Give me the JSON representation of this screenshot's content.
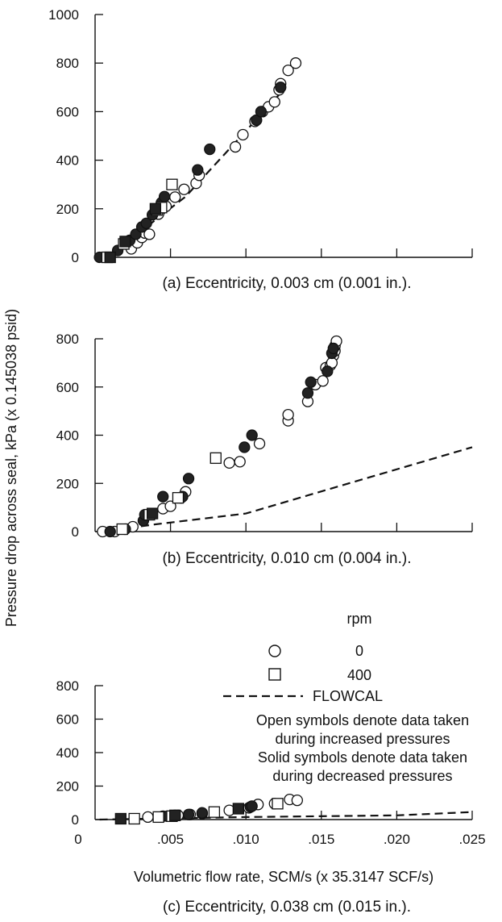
{
  "y_axis_label": "Pressure drop across seal, kPa (x 0.145038 psid)",
  "x_axis_label": "Volumetric flow rate, SCM/s (x 35.3147 SCF/s)",
  "legend": {
    "title": "rpm",
    "open_circle_label": "0",
    "open_square_label": "400",
    "line_label": "FLOWCAL",
    "note_lines": [
      "Open symbols denote data taken",
      "during increased pressures",
      "Solid symbols denote data taken",
      "during decreased pressures"
    ]
  },
  "chart_data": [
    {
      "type": "scatter",
      "caption": "(a) Eccentricity, 0.003 cm (0.001 in.).",
      "xlim": [
        0,
        0.025
      ],
      "ylim": [
        0,
        1000
      ],
      "x_ticks": [
        0,
        0.005,
        0.01,
        0.015,
        0.02,
        0.025
      ],
      "x_tick_labels": [],
      "y_ticks": [
        0,
        200,
        400,
        600,
        800,
        1000
      ],
      "y_tick_labels": [
        "0",
        "200",
        "400",
        "600",
        "800",
        "1000"
      ],
      "series": [
        {
          "name": "0",
          "marker": "circle",
          "fill": "open",
          "points": [
            [
              0.0024,
              35
            ],
            [
              0.0028,
              60
            ],
            [
              0.0031,
              82
            ],
            [
              0.0033,
              100
            ],
            [
              0.0036,
              95
            ],
            [
              0.0042,
              178
            ],
            [
              0.0047,
              210
            ],
            [
              0.0053,
              248
            ],
            [
              0.0059,
              280
            ],
            [
              0.0067,
              305
            ],
            [
              0.0069,
              338
            ],
            [
              0.0093,
              455
            ],
            [
              0.0098,
              505
            ],
            [
              0.0106,
              560
            ],
            [
              0.0111,
              600
            ],
            [
              0.0115,
              620
            ],
            [
              0.0119,
              640
            ],
            [
              0.0122,
              690
            ],
            [
              0.0123,
              715
            ],
            [
              0.0128,
              770
            ],
            [
              0.0133,
              800
            ]
          ]
        },
        {
          "name": "0",
          "marker": "circle",
          "fill": "solid",
          "points": [
            [
              0.0003,
              0
            ],
            [
              0.0015,
              28
            ],
            [
              0.0023,
              70
            ],
            [
              0.0027,
              95
            ],
            [
              0.0031,
              125
            ],
            [
              0.0034,
              140
            ],
            [
              0.0038,
              175
            ],
            [
              0.0044,
              225
            ],
            [
              0.0046,
              250
            ],
            [
              0.0068,
              360
            ],
            [
              0.0076,
              445
            ],
            [
              0.0107,
              565
            ],
            [
              0.011,
              600
            ],
            [
              0.0123,
              700
            ]
          ]
        },
        {
          "name": "400",
          "marker": "square",
          "fill": "open",
          "points": [
            [
              0.0008,
              0
            ],
            [
              0.0019,
              55
            ],
            [
              0.0041,
              195
            ],
            [
              0.0044,
              205
            ],
            [
              0.0051,
              300
            ]
          ]
        },
        {
          "name": "400",
          "marker": "square",
          "fill": "solid",
          "points": [
            [
              0.001,
              0
            ],
            [
              0.002,
              65
            ],
            [
              0.004,
              200
            ]
          ]
        },
        {
          "name": "FLOWCAL",
          "marker": "line",
          "points": [
            [
              0.0008,
              0
            ],
            [
              0.006,
              250
            ],
            [
              0.0125,
              690
            ]
          ]
        }
      ]
    },
    {
      "type": "scatter",
      "caption": "(b) Eccentricity, 0.010 cm (0.004 in.).",
      "xlim": [
        0,
        0.025
      ],
      "ylim": [
        0,
        800
      ],
      "x_ticks": [
        0,
        0.005,
        0.01,
        0.015,
        0.02,
        0.025
      ],
      "x_tick_labels": [],
      "y_ticks": [
        0,
        200,
        400,
        600,
        800
      ],
      "y_tick_labels": [
        "0",
        "200",
        "400",
        "600",
        "800"
      ],
      "series": [
        {
          "name": "0",
          "marker": "circle",
          "fill": "open",
          "points": [
            [
              0.0005,
              0
            ],
            [
              0.0013,
              0
            ],
            [
              0.0025,
              20
            ],
            [
              0.0045,
              95
            ],
            [
              0.005,
              105
            ],
            [
              0.0057,
              140
            ],
            [
              0.006,
              165
            ],
            [
              0.0089,
              285
            ],
            [
              0.0096,
              290
            ],
            [
              0.0109,
              365
            ],
            [
              0.0128,
              460
            ],
            [
              0.0128,
              485
            ],
            [
              0.0141,
              540
            ],
            [
              0.0146,
              610
            ],
            [
              0.0151,
              625
            ],
            [
              0.0153,
              680
            ],
            [
              0.0156,
              690
            ],
            [
              0.0158,
              730
            ],
            [
              0.0159,
              750
            ],
            [
              0.0159,
              770
            ],
            [
              0.016,
              790
            ],
            [
              0.0157,
              700
            ]
          ]
        },
        {
          "name": "0",
          "marker": "circle",
          "fill": "solid",
          "points": [
            [
              0.001,
              0
            ],
            [
              0.002,
              10
            ],
            [
              0.0032,
              45
            ],
            [
              0.0033,
              70
            ],
            [
              0.0045,
              145
            ],
            [
              0.0058,
              145
            ],
            [
              0.0062,
              220
            ],
            [
              0.0099,
              350
            ],
            [
              0.0104,
              400
            ],
            [
              0.0141,
              575
            ],
            [
              0.0143,
              620
            ],
            [
              0.0154,
              665
            ],
            [
              0.0157,
              740
            ],
            [
              0.0158,
              760
            ]
          ]
        },
        {
          "name": "400",
          "marker": "square",
          "fill": "open",
          "points": [
            [
              0.0018,
              10
            ],
            [
              0.0036,
              70
            ],
            [
              0.0055,
              140
            ],
            [
              0.008,
              305
            ]
          ]
        },
        {
          "name": "400",
          "marker": "square",
          "fill": "solid",
          "points": [
            [
              0.0038,
              75
            ]
          ]
        },
        {
          "name": "FLOWCAL",
          "marker": "line",
          "points": [
            [
              0.0005,
              0
            ],
            [
              0.004,
              30
            ],
            [
              0.01,
              75
            ],
            [
              0.025,
              350
            ]
          ]
        }
      ]
    },
    {
      "type": "scatter",
      "caption": "(c) Eccentricity, 0.038 cm (0.015 in.).",
      "xlim": [
        0,
        0.025
      ],
      "ylim": [
        0,
        800
      ],
      "x_ticks": [
        0,
        0.005,
        0.01,
        0.015,
        0.02,
        0.025
      ],
      "x_tick_labels": [
        "0",
        ".005",
        ".010",
        ".015",
        ".020",
        ".025"
      ],
      "y_ticks": [
        0,
        200,
        400,
        600,
        800
      ],
      "y_tick_labels": [
        "0",
        "200",
        "400",
        "600",
        "800"
      ],
      "series": [
        {
          "name": "0",
          "marker": "circle",
          "fill": "open",
          "points": [
            [
              0.0035,
              15
            ],
            [
              0.0045,
              20
            ],
            [
              0.0055,
              25
            ],
            [
              0.0063,
              30
            ],
            [
              0.0071,
              35
            ],
            [
              0.0089,
              55
            ],
            [
              0.0102,
              70
            ],
            [
              0.0108,
              90
            ],
            [
              0.0119,
              95
            ],
            [
              0.0129,
              120
            ],
            [
              0.0134,
              115
            ]
          ]
        },
        {
          "name": "0",
          "marker": "circle",
          "fill": "solid",
          "points": [
            [
              0.0048,
              20
            ],
            [
              0.0053,
              25
            ],
            [
              0.0062,
              30
            ],
            [
              0.0071,
              40
            ],
            [
              0.0103,
              75
            ],
            [
              0.0104,
              80
            ]
          ]
        },
        {
          "name": "400",
          "marker": "square",
          "fill": "open",
          "points": [
            [
              0.0026,
              5
            ],
            [
              0.0042,
              15
            ],
            [
              0.0051,
              20
            ],
            [
              0.0079,
              45
            ],
            [
              0.0121,
              95
            ]
          ]
        },
        {
          "name": "400",
          "marker": "square",
          "fill": "solid",
          "points": [
            [
              0.0017,
              5
            ],
            [
              0.0053,
              25
            ],
            [
              0.0095,
              65
            ]
          ]
        },
        {
          "name": "FLOWCAL",
          "marker": "line",
          "points": [
            [
              0.0003,
              0
            ],
            [
              0.01,
              15
            ],
            [
              0.02,
              25
            ],
            [
              0.025,
              45
            ]
          ]
        }
      ]
    }
  ]
}
